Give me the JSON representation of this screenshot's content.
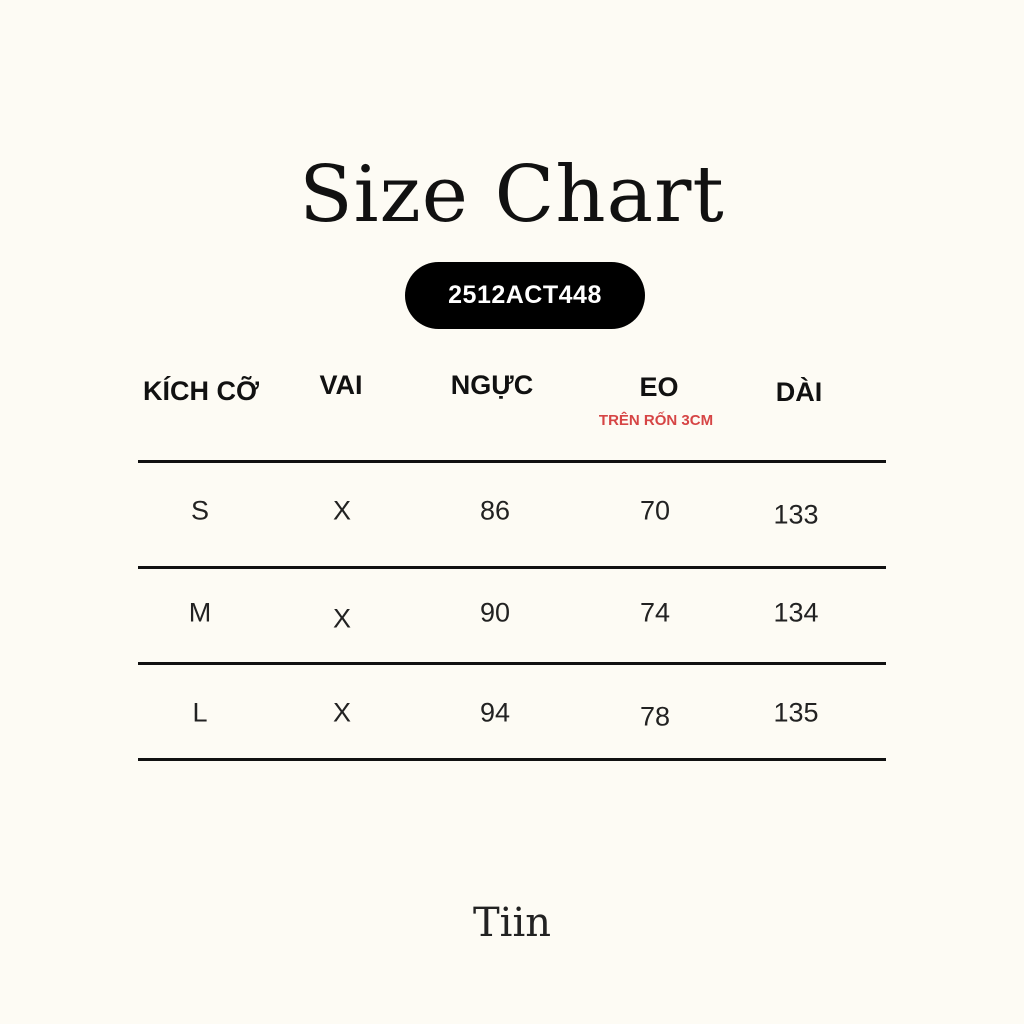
{
  "title": "Size Chart",
  "product_code": "2512ACT448",
  "headers": {
    "size": "KÍCH CỠ",
    "shoulder": "VAI",
    "chest": "NGỰC",
    "waist": "EO",
    "waist_note": "TRÊN RỐN 3CM",
    "length": "DÀI"
  },
  "rows": [
    {
      "size": "S",
      "shoulder": "X",
      "chest": "86",
      "waist": "70",
      "length": "133"
    },
    {
      "size": "M",
      "shoulder": "X",
      "chest": "90",
      "waist": "74",
      "length": "134"
    },
    {
      "size": "L",
      "shoulder": "X",
      "chest": "94",
      "waist": "78",
      "length": "135"
    }
  ],
  "brand": "Tiin",
  "colors": {
    "background": "#fdfbf4",
    "note": "#d64545",
    "badge": "#000000"
  }
}
